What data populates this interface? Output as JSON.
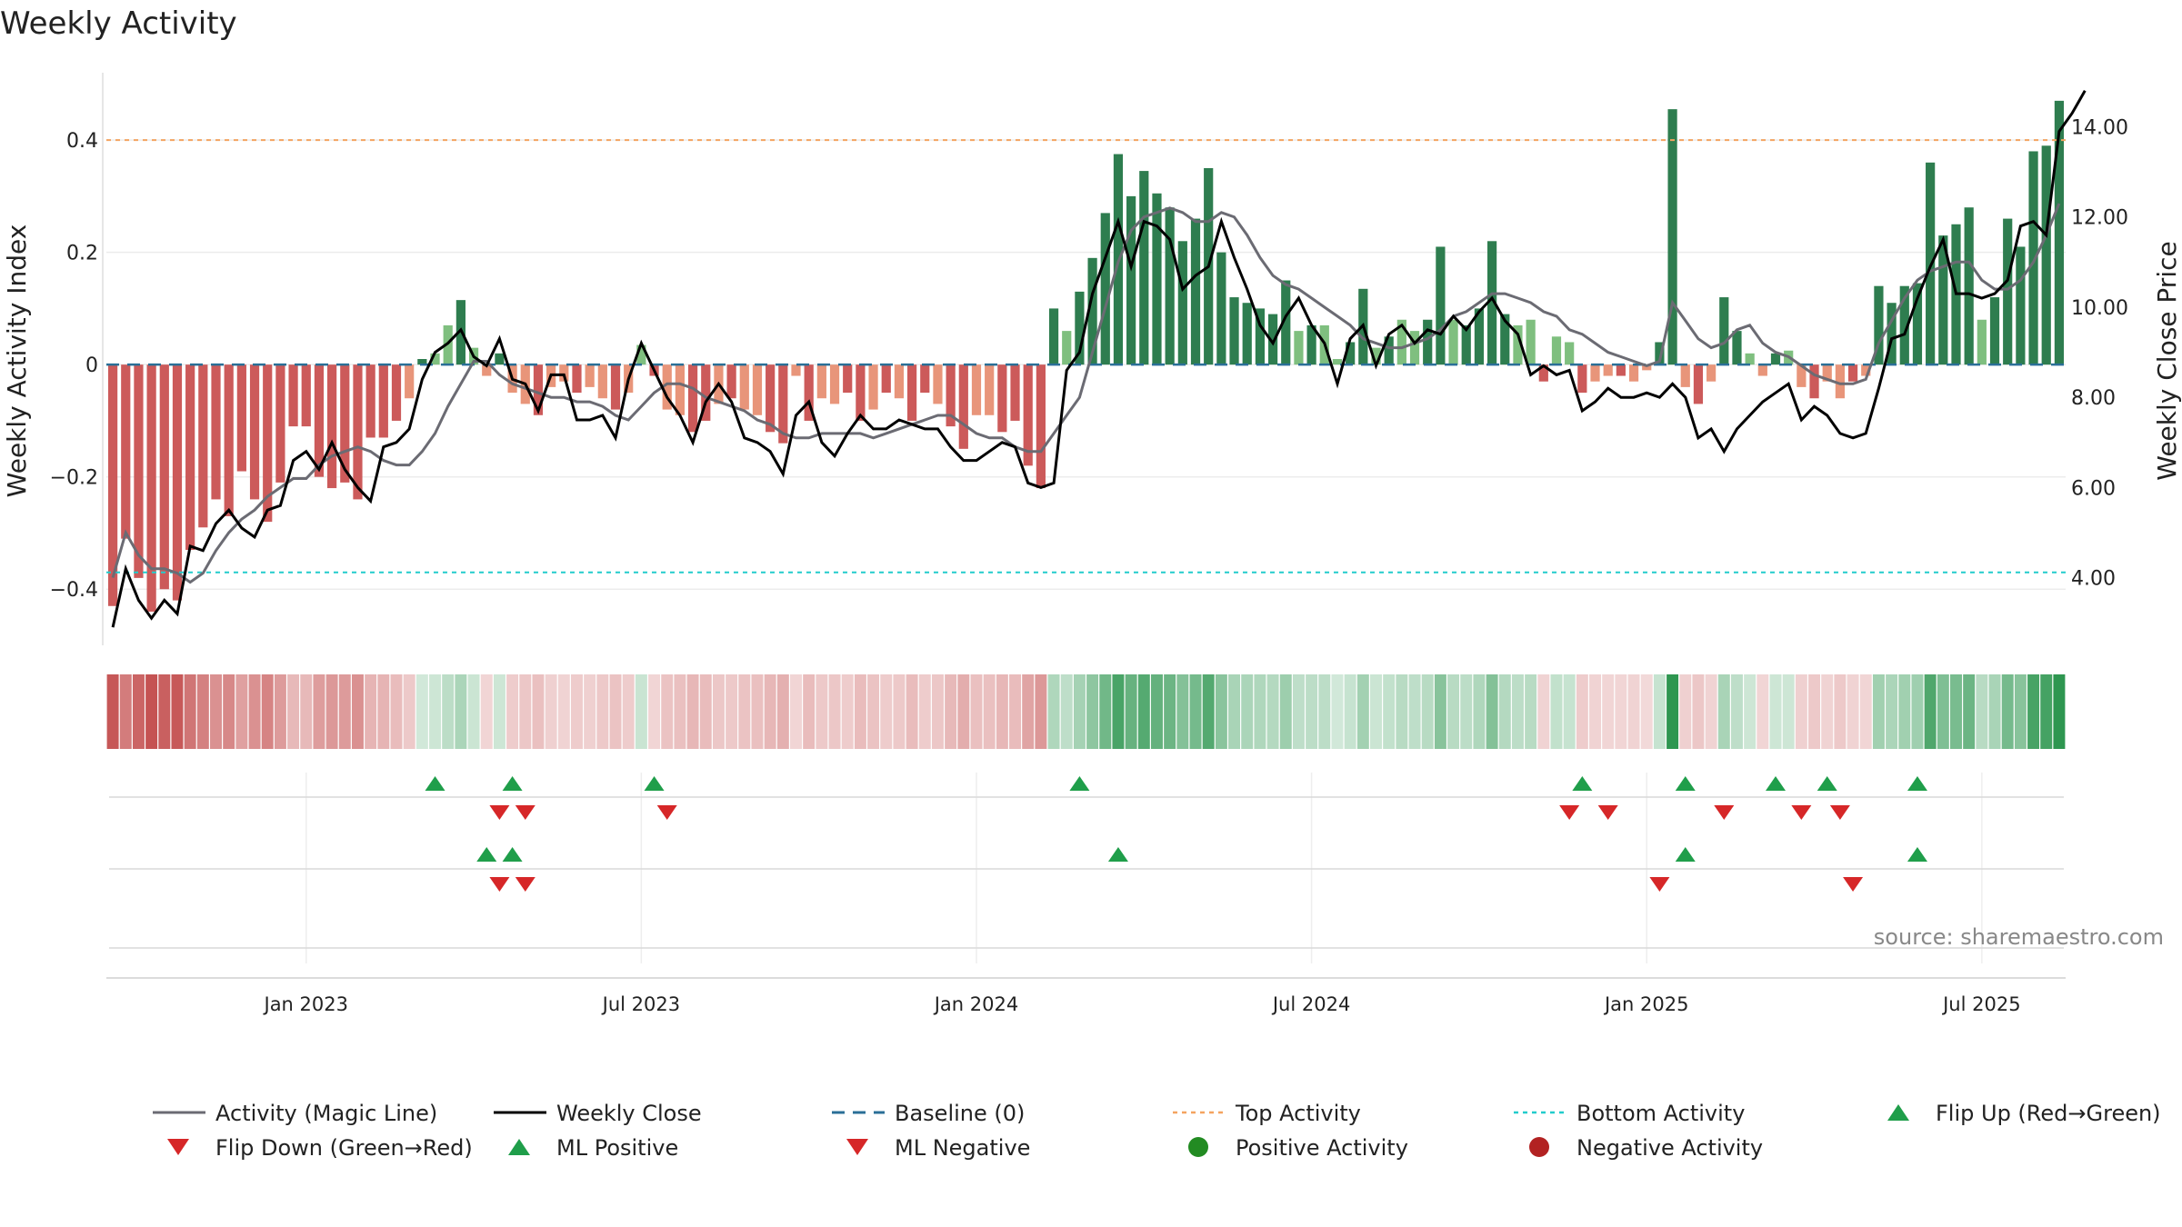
{
  "title": "Weekly Activity",
  "source": "source: sharemaestro.com",
  "colors": {
    "pos_strong": "#2e7d4f",
    "pos_light": "#7fbf7f",
    "neg_strong": "#cc5a5a",
    "neg_light": "#e8957a",
    "magic_line": "#6b6b73",
    "close_line": "#000000",
    "baseline": "#2a6f97",
    "top_line": "#f4a460",
    "bottom_line": "#22cccc",
    "marker_up": "#1f9e4a",
    "marker_down": "#d62728",
    "dot_pos": "#228b22",
    "dot_neg": "#b22222"
  },
  "chart_data": {
    "type": "bar",
    "title": "Weekly Activity",
    "ylabel": "Weekly Activity Index",
    "y2label": "Weekly Close Price",
    "ylim": [
      -0.5,
      0.52
    ],
    "y2lim": [
      2.5,
      15.2
    ],
    "yticks": [
      0.4,
      0.2,
      0,
      -0.2,
      -0.4
    ],
    "ytick_labels": [
      "0.4",
      "0.2",
      "0",
      "−0.2",
      "−0.4"
    ],
    "y2ticks": [
      14,
      12,
      10,
      8,
      6,
      4
    ],
    "y2tick_labels": [
      "14.00",
      "12.00",
      "10.00",
      "8.00",
      "6.00",
      "4.00"
    ],
    "xticks": [
      {
        "label": "Jan 2023",
        "week": 15
      },
      {
        "label": "Jul 2023",
        "week": 41
      },
      {
        "label": "Jan 2024",
        "week": 67
      },
      {
        "label": "Jul 2024",
        "week": 93
      },
      {
        "label": "Jan 2025",
        "week": 119
      },
      {
        "label": "Jul 2025",
        "week": 145
      }
    ],
    "top_activity": 0.4,
    "bottom_activity": -0.37,
    "activity": [
      -0.43,
      -0.31,
      -0.38,
      -0.44,
      -0.4,
      -0.42,
      -0.33,
      -0.29,
      -0.24,
      -0.27,
      -0.19,
      -0.24,
      -0.28,
      -0.21,
      -0.11,
      -0.11,
      -0.2,
      -0.22,
      -0.21,
      -0.24,
      -0.13,
      -0.13,
      -0.1,
      -0.06,
      0.01,
      0.02,
      0.07,
      0.115,
      0.03,
      -0.02,
      0.02,
      -0.05,
      -0.07,
      -0.09,
      -0.04,
      -0.03,
      -0.05,
      -0.04,
      -0.06,
      -0.08,
      -0.05,
      0.035,
      -0.02,
      -0.08,
      -0.09,
      -0.12,
      -0.1,
      -0.07,
      -0.06,
      -0.08,
      -0.09,
      -0.12,
      -0.14,
      -0.02,
      -0.1,
      -0.06,
      -0.07,
      -0.05,
      -0.1,
      -0.08,
      -0.05,
      -0.06,
      -0.1,
      -0.05,
      -0.07,
      -0.11,
      -0.15,
      -0.09,
      -0.09,
      -0.12,
      -0.1,
      -0.18,
      -0.22,
      0.1,
      0.06,
      0.13,
      0.19,
      0.27,
      0.375,
      0.3,
      0.345,
      0.305,
      0.28,
      0.22,
      0.26,
      0.35,
      0.2,
      0.12,
      0.11,
      0.1,
      0.09,
      0.15,
      0.06,
      0.07,
      0.07,
      0.01,
      0.04,
      0.135,
      0.03,
      0.05,
      0.08,
      0.06,
      0.08,
      0.21,
      0.08,
      0.07,
      0.1,
      0.22,
      0.09,
      0.07,
      0.08,
      -0.03,
      0.05,
      0.04,
      -0.05,
      -0.03,
      -0.02,
      -0.02,
      -0.03,
      -0.01,
      0.04,
      0.455,
      -0.04,
      -0.07,
      -0.03,
      0.12,
      0.06,
      0.02,
      -0.02,
      0.02,
      0.025,
      -0.04,
      -0.06,
      -0.03,
      -0.06,
      -0.03,
      -0.02,
      0.14,
      0.11,
      0.14,
      0.145,
      0.36,
      0.23,
      0.25,
      0.28,
      0.08,
      0.12,
      0.26,
      0.21,
      0.38,
      0.39,
      0.47
    ],
    "magic_line": [
      4.0,
      5.0,
      4.5,
      4.2,
      4.2,
      4.1,
      3.9,
      4.1,
      4.6,
      5.0,
      5.3,
      5.5,
      5.8,
      6.0,
      6.2,
      6.2,
      6.5,
      6.7,
      6.8,
      6.9,
      6.8,
      6.6,
      6.5,
      6.5,
      6.8,
      7.2,
      7.8,
      8.3,
      8.8,
      8.8,
      8.5,
      8.3,
      8.2,
      8.1,
      8.0,
      8.0,
      7.9,
      7.9,
      7.8,
      7.6,
      7.5,
      7.8,
      8.1,
      8.3,
      8.3,
      8.2,
      8.0,
      7.9,
      7.8,
      7.7,
      7.5,
      7.4,
      7.2,
      7.1,
      7.1,
      7.2,
      7.2,
      7.2,
      7.2,
      7.1,
      7.2,
      7.3,
      7.4,
      7.5,
      7.6,
      7.6,
      7.4,
      7.2,
      7.1,
      7.1,
      6.9,
      6.8,
      6.8,
      7.2,
      7.6,
      8.0,
      9.0,
      10.0,
      11.0,
      11.7,
      12.0,
      12.1,
      12.2,
      12.1,
      11.9,
      11.9,
      12.1,
      12.0,
      11.6,
      11.1,
      10.7,
      10.5,
      10.4,
      10.2,
      10.0,
      9.8,
      9.6,
      9.3,
      9.2,
      9.1,
      9.1,
      9.2,
      9.3,
      9.5,
      9.8,
      9.9,
      10.1,
      10.3,
      10.3,
      10.2,
      10.1,
      9.9,
      9.8,
      9.5,
      9.4,
      9.2,
      9.0,
      8.9,
      8.8,
      8.7,
      8.8,
      10.1,
      9.7,
      9.3,
      9.1,
      9.2,
      9.5,
      9.6,
      9.2,
      9.0,
      8.9,
      8.7,
      8.5,
      8.4,
      8.3,
      8.3,
      8.4,
      9.2,
      9.7,
      10.2,
      10.6,
      10.8,
      10.9,
      11.0,
      11.0,
      10.6,
      10.4,
      10.4,
      10.6,
      11.0,
      11.6,
      12.3
    ],
    "weekly_close": [
      2.9,
      4.2,
      3.5,
      3.1,
      3.5,
      3.2,
      4.7,
      4.6,
      5.2,
      5.5,
      5.1,
      4.9,
      5.5,
      5.6,
      6.6,
      6.8,
      6.4,
      7.0,
      6.4,
      6.0,
      5.7,
      6.9,
      7.0,
      7.3,
      8.4,
      9.0,
      9.2,
      9.5,
      8.9,
      8.7,
      9.3,
      8.4,
      8.3,
      7.7,
      8.5,
      8.5,
      7.5,
      7.5,
      7.6,
      7.1,
      8.4,
      9.2,
      8.6,
      8.0,
      7.6,
      7.0,
      7.9,
      8.3,
      7.9,
      7.1,
      7.0,
      6.8,
      6.3,
      7.6,
      7.9,
      7.0,
      6.7,
      7.2,
      7.6,
      7.3,
      7.3,
      7.5,
      7.4,
      7.3,
      7.3,
      6.9,
      6.6,
      6.6,
      6.8,
      7.0,
      6.9,
      6.1,
      6.0,
      6.1,
      8.6,
      9.0,
      10.3,
      11.1,
      11.9,
      10.9,
      11.9,
      11.8,
      11.5,
      10.4,
      10.7,
      10.9,
      11.9,
      11.1,
      10.4,
      9.6,
      9.2,
      9.8,
      10.2,
      9.6,
      9.2,
      8.3,
      9.3,
      9.6,
      8.7,
      9.4,
      9.6,
      9.2,
      9.5,
      9.4,
      9.8,
      9.5,
      9.9,
      10.2,
      9.7,
      9.4,
      8.5,
      8.7,
      8.5,
      8.6,
      7.7,
      7.9,
      8.2,
      8.0,
      8.0,
      8.1,
      8.0,
      8.3,
      8.0,
      7.1,
      7.3,
      6.8,
      7.3,
      7.6,
      7.9,
      8.1,
      8.3,
      7.5,
      7.8,
      7.6,
      7.2,
      7.1,
      7.2,
      8.2,
      9.3,
      9.4,
      10.2,
      10.9,
      11.5,
      10.3,
      10.3,
      10.2,
      10.3,
      10.6,
      11.8,
      11.9,
      11.6,
      13.9,
      14.3,
      14.8
    ],
    "flip_up_weeks": [
      25,
      31,
      42,
      75,
      114,
      122,
      129,
      133,
      140
    ],
    "flip_down_weeks": [
      30,
      32,
      43,
      113,
      116,
      125,
      131,
      134
    ],
    "ml_positive_weeks": [
      29,
      31,
      78,
      122,
      140
    ],
    "ml_negative_weeks": [
      30,
      32,
      120,
      135
    ],
    "legend": [
      "Activity (Magic Line)",
      "Weekly Close",
      "Baseline (0)",
      "Top Activity",
      "Bottom Activity",
      "Flip Up (Red→Green)",
      "Flip Down (Green→Red)",
      "ML Positive",
      "ML Negative",
      "Positive Activity",
      "Negative Activity"
    ]
  }
}
